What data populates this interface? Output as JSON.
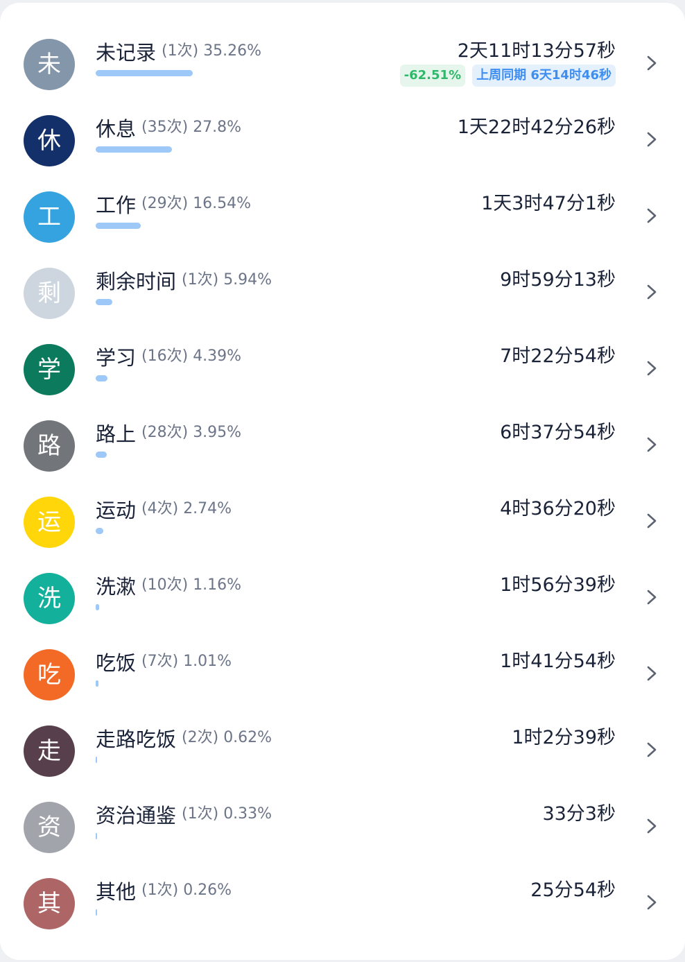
{
  "colors": {
    "bar": "#9ec8f8",
    "chevron": "#5b6272"
  },
  "items": [
    {
      "initial": "未",
      "name": "未记录",
      "count": "(1次)",
      "percent": "35.26%",
      "ratio": 0.3526,
      "duration": "2天11时13分57秒",
      "color": "#8496a9",
      "change": "-62.51%",
      "last_week": "上周同期 6天14时46秒"
    },
    {
      "initial": "休",
      "name": "休息",
      "count": "(35次)",
      "percent": "27.8%",
      "ratio": 0.278,
      "duration": "1天22时42分26秒",
      "color": "#14306b"
    },
    {
      "initial": "工",
      "name": "工作",
      "count": "(29次)",
      "percent": "16.54%",
      "ratio": 0.1654,
      "duration": "1天3时47分1秒",
      "color": "#34a3e0"
    },
    {
      "initial": "剩",
      "name": "剩余时间",
      "count": "(1次)",
      "percent": "5.94%",
      "ratio": 0.0594,
      "duration": "9时59分13秒",
      "color": "#cdd5de"
    },
    {
      "initial": "学",
      "name": "学习",
      "count": "(16次)",
      "percent": "4.39%",
      "ratio": 0.0439,
      "duration": "7时22分54秒",
      "color": "#0b7a5d"
    },
    {
      "initial": "路",
      "name": "路上",
      "count": "(28次)",
      "percent": "3.95%",
      "ratio": 0.0395,
      "duration": "6时37分54秒",
      "color": "#727579"
    },
    {
      "initial": "运",
      "name": "运动",
      "count": "(4次)",
      "percent": "2.74%",
      "ratio": 0.0274,
      "duration": "4时36分20秒",
      "color": "#ffd60a"
    },
    {
      "initial": "洗",
      "name": "洗漱",
      "count": "(10次)",
      "percent": "1.16%",
      "ratio": 0.0116,
      "duration": "1时56分39秒",
      "color": "#13b09b"
    },
    {
      "initial": "吃",
      "name": "吃饭",
      "count": "(7次)",
      "percent": "1.01%",
      "ratio": 0.0101,
      "duration": "1时41分54秒",
      "color": "#f36a26"
    },
    {
      "initial": "走",
      "name": "走路吃饭",
      "count": "(2次)",
      "percent": "0.62%",
      "ratio": 0.0062,
      "duration": "1时2分39秒",
      "color": "#57404b"
    },
    {
      "initial": "资",
      "name": "资治通鉴",
      "count": "(1次)",
      "percent": "0.33%",
      "ratio": 0.0033,
      "duration": "33分3秒",
      "color": "#a1a5ab"
    },
    {
      "initial": "其",
      "name": "其他",
      "count": "(1次)",
      "percent": "0.26%",
      "ratio": 0.0026,
      "duration": "25分54秒",
      "color": "#ad6565"
    }
  ]
}
